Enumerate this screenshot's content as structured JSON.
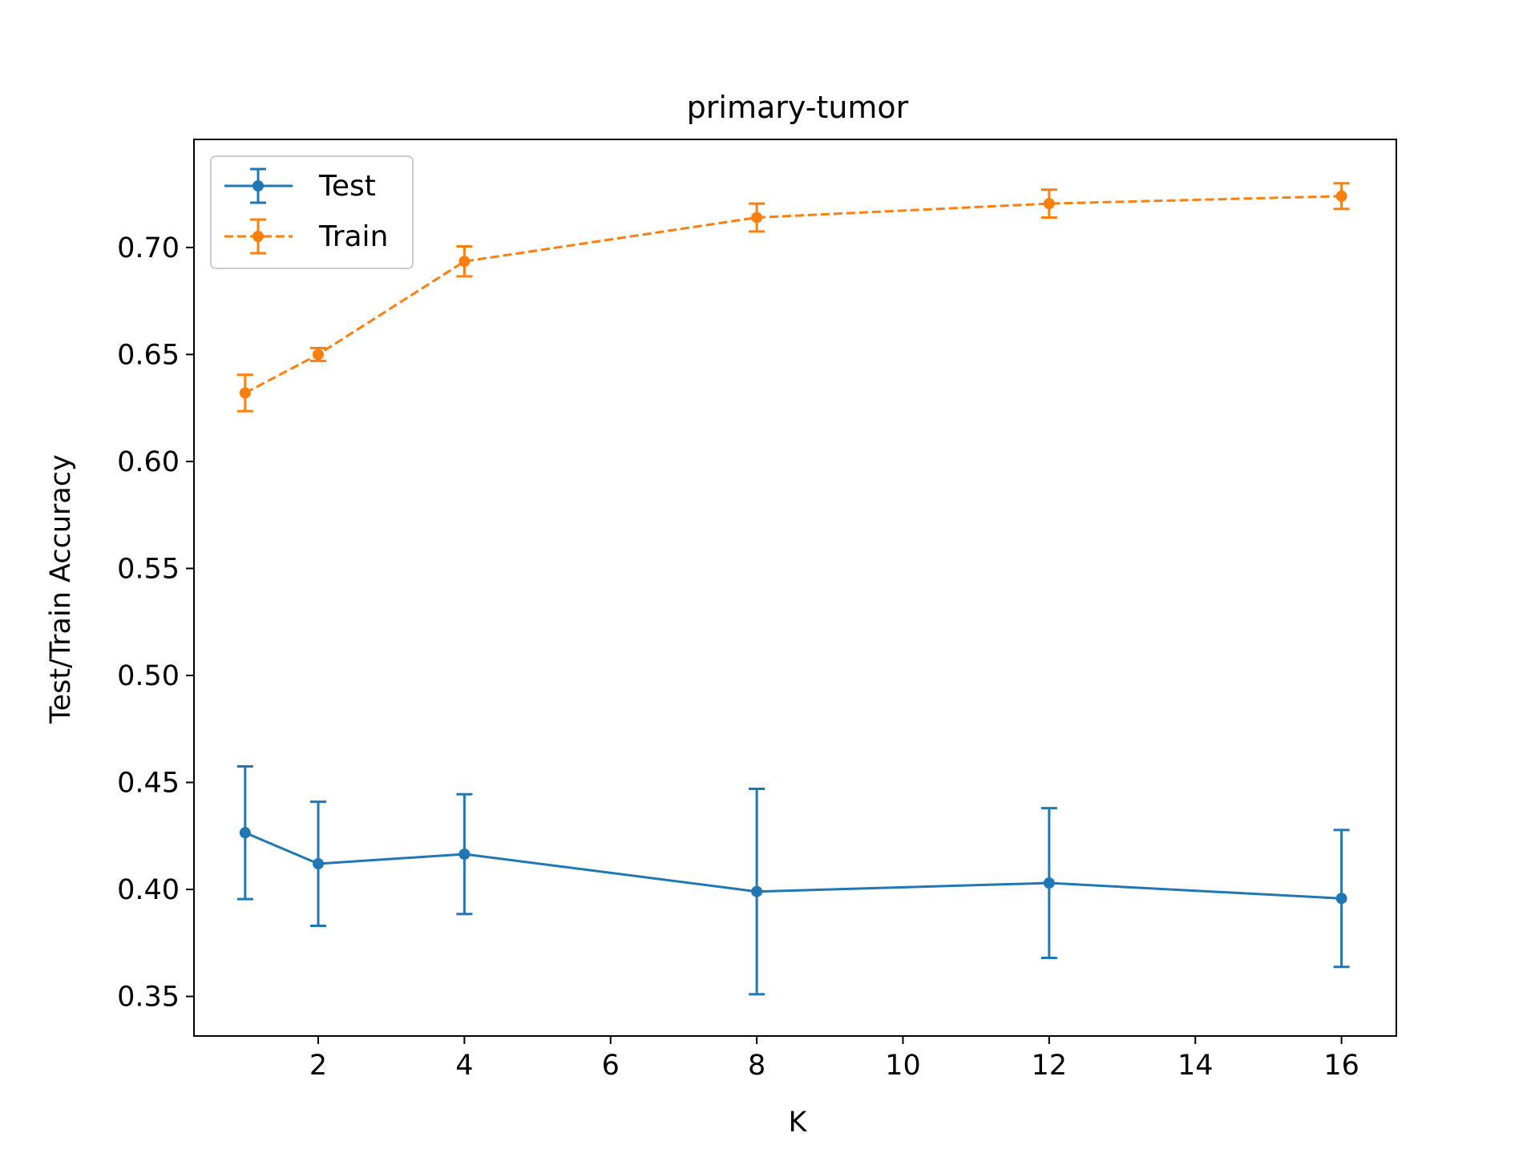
{
  "chart_data": {
    "type": "line",
    "title": "primary-tumor",
    "xlabel": "K",
    "ylabel": "Test/Train Accuracy",
    "xlim": [
      0.3,
      16.75
    ],
    "ylim": [
      0.3315,
      0.7505
    ],
    "xticks": [
      2,
      4,
      6,
      8,
      10,
      12,
      14,
      16
    ],
    "xtick_labels": [
      "2",
      "4",
      "6",
      "8",
      "10",
      "12",
      "14",
      "16"
    ],
    "yticks": [
      0.35,
      0.4,
      0.45,
      0.5,
      0.55,
      0.6,
      0.65,
      0.7
    ],
    "ytick_labels": [
      "0.35",
      "0.40",
      "0.45",
      "0.50",
      "0.55",
      "0.60",
      "0.65",
      "0.70"
    ],
    "grid": false,
    "legend_position": "top-left",
    "series": [
      {
        "name": "Test",
        "color": "#1f77b4",
        "line_style": "solid",
        "x": [
          1,
          2,
          4,
          8,
          12,
          16
        ],
        "y": [
          0.4265,
          0.412,
          0.4165,
          0.399,
          0.403,
          0.3958
        ],
        "err": [
          0.031,
          0.029,
          0.028,
          0.048,
          0.035,
          0.032
        ]
      },
      {
        "name": "Train",
        "color": "#ff7f0e",
        "line_style": "dashed",
        "x": [
          1,
          2,
          4,
          8,
          12,
          16
        ],
        "y": [
          0.632,
          0.65,
          0.6935,
          0.714,
          0.7205,
          0.724
        ],
        "err": [
          0.0085,
          0.003,
          0.007,
          0.0065,
          0.0065,
          0.006
        ]
      }
    ]
  }
}
